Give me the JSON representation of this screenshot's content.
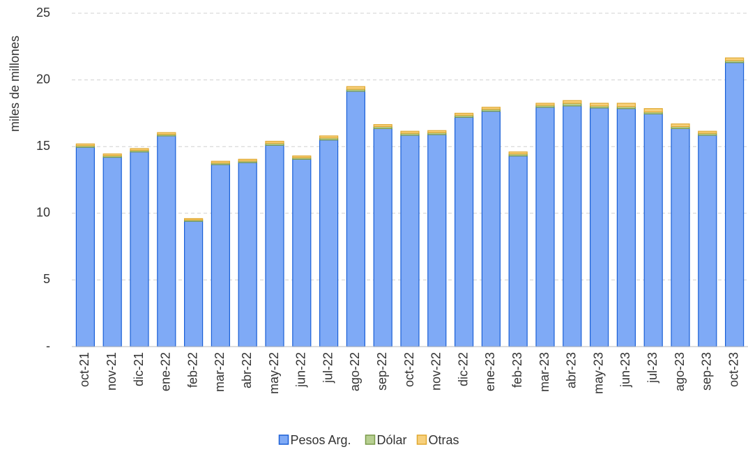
{
  "chart_data": {
    "type": "stacked-bar",
    "y_label": "miles de millones",
    "categories": [
      "oct-21",
      "nov-21",
      "dic-21",
      "ene-22",
      "feb-22",
      "mar-22",
      "abr-22",
      "may-22",
      "jun-22",
      "jul-22",
      "ago-22",
      "sep-22",
      "oct-22",
      "nov-22",
      "dic-22",
      "ene-23",
      "feb-23",
      "mar-23",
      "abr-23",
      "may-23",
      "jun-23",
      "jul-23",
      "ago-23",
      "sep-23",
      "oct-23"
    ],
    "series": [
      {
        "name": "Pesos Arg.",
        "color": "#7faaf6",
        "stroke": "#1a5fd6",
        "values": [
          14.95,
          14.2,
          14.6,
          15.8,
          9.4,
          13.65,
          13.8,
          15.1,
          14.05,
          15.5,
          19.15,
          16.35,
          15.85,
          15.9,
          17.2,
          17.65,
          14.3,
          17.95,
          18.05,
          17.9,
          17.85,
          17.45,
          16.35,
          15.85,
          21.3
        ]
      },
      {
        "name": "Dólar",
        "color": "#b7cf91",
        "stroke": "#7a9a4a",
        "values": [
          0.12,
          0.12,
          0.12,
          0.12,
          0.1,
          0.12,
          0.12,
          0.15,
          0.12,
          0.15,
          0.15,
          0.15,
          0.15,
          0.15,
          0.15,
          0.15,
          0.15,
          0.15,
          0.2,
          0.15,
          0.15,
          0.15,
          0.15,
          0.15,
          0.15
        ]
      },
      {
        "name": "Otras",
        "color": "#f7d07c",
        "stroke": "#e0a830",
        "values": [
          0.13,
          0.13,
          0.13,
          0.13,
          0.1,
          0.13,
          0.13,
          0.15,
          0.13,
          0.15,
          0.2,
          0.15,
          0.15,
          0.15,
          0.15,
          0.15,
          0.15,
          0.15,
          0.2,
          0.2,
          0.25,
          0.25,
          0.2,
          0.15,
          0.2
        ]
      }
    ],
    "ylim": [
      0,
      25
    ],
    "yticks": [
      {
        "value": 0,
        "label": "-"
      },
      5,
      10,
      15,
      20,
      25
    ],
    "grid": true,
    "legend": "bottom"
  }
}
